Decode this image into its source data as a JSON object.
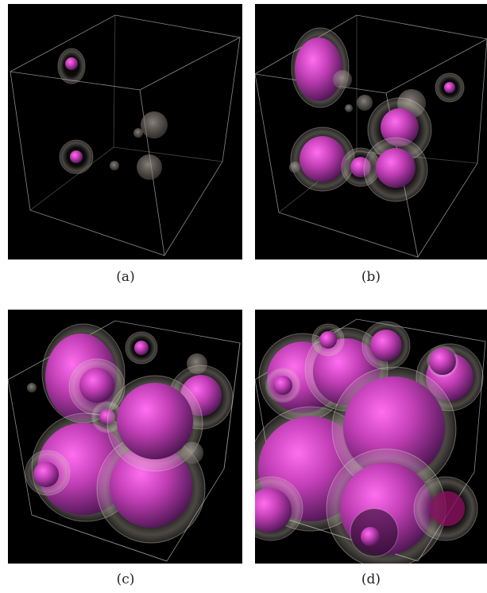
{
  "figure": {
    "panels": [
      {
        "id": "a",
        "caption": "(a)",
        "stage": 1
      },
      {
        "id": "b",
        "caption": "(b)",
        "stage": 2
      },
      {
        "id": "c",
        "caption": "(c)",
        "stage": 3
      },
      {
        "id": "d",
        "caption": "(d)",
        "stage": 4
      }
    ],
    "colors": {
      "background": "#000000",
      "cube_edges": "#8a8a8a",
      "sphere_core": "#c23fb6",
      "sphere_shell": "#c9c0b4"
    }
  }
}
